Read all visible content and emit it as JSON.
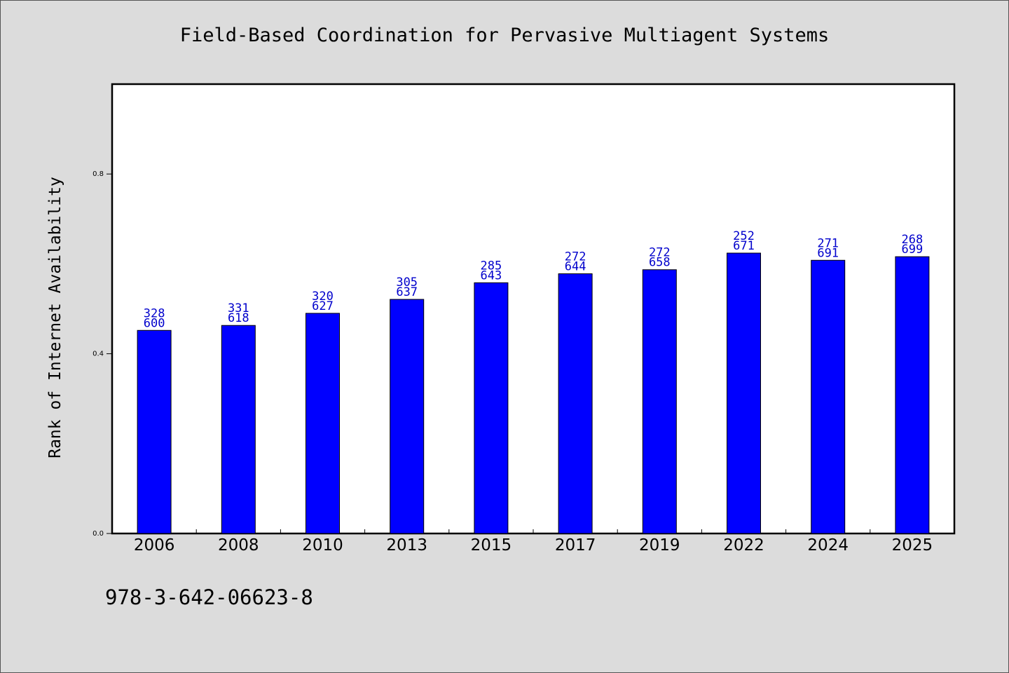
{
  "chart_data": {
    "type": "bar",
    "title": "Field-Based Coordination for Pervasive Multiagent Systems",
    "ylabel": "Rank of Internet Availability",
    "xlabel": "",
    "ylim": [
      0,
      1.0
    ],
    "yticks": [
      0.0,
      0.4,
      0.8
    ],
    "ytick_labels": [
      "0.0",
      "0.4",
      "0.8"
    ],
    "grid": false,
    "categories": [
      "2006",
      "2008",
      "2010",
      "2013",
      "2015",
      "2017",
      "2019",
      "2022",
      "2024",
      "2025"
    ],
    "values": [
      0.452,
      0.463,
      0.49,
      0.521,
      0.558,
      0.578,
      0.587,
      0.624,
      0.608,
      0.616
    ],
    "label_top": [
      "328",
      "331",
      "320",
      "305",
      "285",
      "272",
      "272",
      "252",
      "271",
      "268"
    ],
    "label_bottom": [
      "600",
      "618",
      "627",
      "637",
      "643",
      "644",
      "658",
      "671",
      "691",
      "699"
    ],
    "bar_color": "#0000ff",
    "label_color": "#0000cc"
  },
  "footer": {
    "code": "978-3-642-06623-8"
  }
}
